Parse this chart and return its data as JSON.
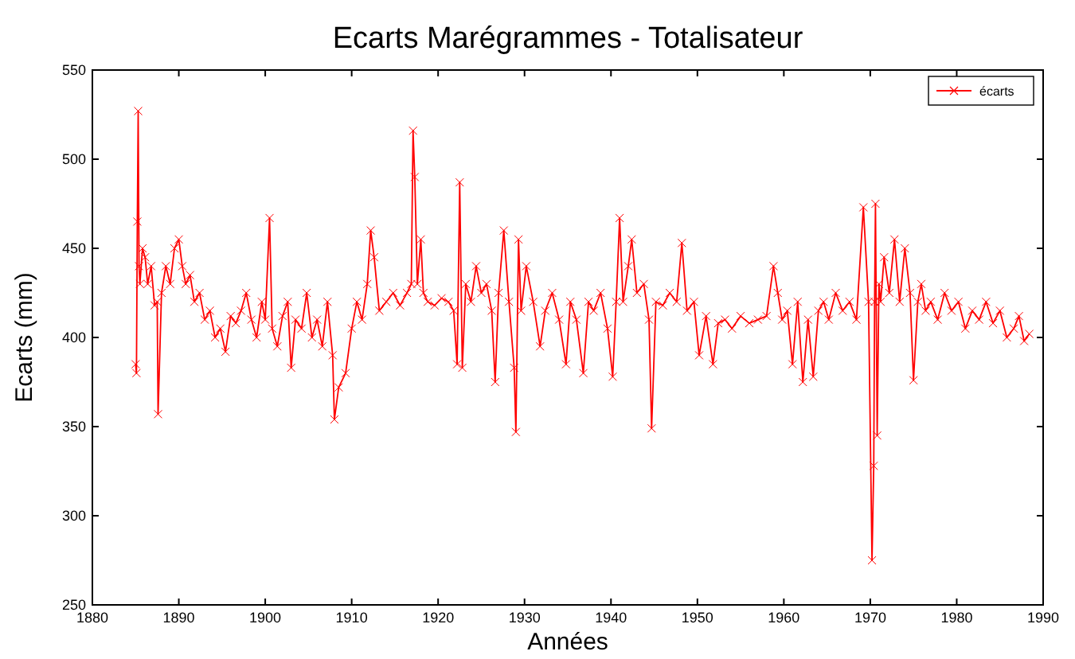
{
  "chart_data": {
    "type": "line",
    "title": "Ecarts Marégrammes - Totalisateur",
    "xlabel": "Années",
    "ylabel": "Ecarts (mm)",
    "xlim": [
      1880,
      1990
    ],
    "xticks": [
      1880,
      1890,
      1900,
      1910,
      1920,
      1930,
      1940,
      1950,
      1960,
      1970,
      1980,
      1990
    ],
    "ylim": [
      250,
      550
    ],
    "yticks": [
      250,
      300,
      350,
      400,
      450,
      500,
      550
    ],
    "grid": false,
    "legend": "top right",
    "marker": "cross",
    "line_style": "solid",
    "series": [
      {
        "name": "écarts",
        "color": "#ff0000",
        "x": [
          1885.0,
          1885.1,
          1885.2,
          1885.3,
          1885.4,
          1885.5,
          1885.8,
          1886.1,
          1886.4,
          1886.8,
          1887.2,
          1887.5,
          1887.6,
          1888.0,
          1888.5,
          1889.0,
          1889.5,
          1890.0,
          1890.4,
          1890.8,
          1891.3,
          1891.8,
          1892.4,
          1893.0,
          1893.6,
          1894.2,
          1894.8,
          1895.4,
          1896.0,
          1896.6,
          1897.2,
          1897.8,
          1898.4,
          1899.0,
          1899.6,
          1900.0,
          1900.5,
          1900.8,
          1901.4,
          1902.0,
          1902.6,
          1903.0,
          1903.5,
          1904.2,
          1904.8,
          1905.4,
          1906.0,
          1906.6,
          1907.2,
          1907.8,
          1908.0,
          1908.5,
          1909.3,
          1910.0,
          1910.6,
          1911.2,
          1911.8,
          1912.2,
          1912.6,
          1913.2,
          1914.0,
          1914.8,
          1915.6,
          1916.4,
          1916.9,
          1917.1,
          1917.3,
          1917.6,
          1918.0,
          1918.3,
          1918.8,
          1919.6,
          1920.4,
          1921.2,
          1921.8,
          1922.2,
          1922.5,
          1922.8,
          1923.2,
          1923.8,
          1924.4,
          1925.0,
          1925.6,
          1926.2,
          1926.6,
          1927.0,
          1927.6,
          1928.2,
          1928.8,
          1929.0,
          1929.3,
          1929.6,
          1930.2,
          1931.0,
          1931.8,
          1932.4,
          1933.2,
          1934.0,
          1934.8,
          1935.3,
          1936.0,
          1936.8,
          1937.4,
          1938.0,
          1938.8,
          1939.6,
          1940.2,
          1940.6,
          1941.0,
          1941.4,
          1942.0,
          1942.4,
          1943.0,
          1943.8,
          1944.4,
          1944.7,
          1945.2,
          1946.0,
          1946.8,
          1947.6,
          1948.2,
          1948.8,
          1949.6,
          1950.2,
          1951.0,
          1951.8,
          1952.4,
          1953.2,
          1954.0,
          1955.0,
          1956.0,
          1957.0,
          1958.0,
          1958.8,
          1959.3,
          1959.8,
          1960.4,
          1961.0,
          1961.6,
          1962.2,
          1962.8,
          1963.4,
          1964.0,
          1964.6,
          1965.2,
          1966.0,
          1966.8,
          1967.6,
          1968.4,
          1969.2,
          1969.8,
          1970.2,
          1970.4,
          1970.5,
          1970.6,
          1970.8,
          1971.0,
          1971.2,
          1971.6,
          1972.2,
          1972.8,
          1973.4,
          1974.0,
          1974.6,
          1975.0,
          1975.5,
          1975.9,
          1976.4,
          1977.0,
          1977.8,
          1978.6,
          1979.4,
          1980.2,
          1981.0,
          1981.8,
          1982.6,
          1983.4,
          1984.2,
          1985.0,
          1985.8,
          1986.6,
          1987.2,
          1987.8,
          1988.4
        ],
        "values": [
          385,
          380,
          465,
          527,
          440,
          430,
          450,
          445,
          430,
          440,
          418,
          420,
          357,
          425,
          440,
          430,
          450,
          455,
          440,
          430,
          435,
          420,
          425,
          410,
          415,
          400,
          405,
          392,
          412,
          408,
          415,
          425,
          410,
          400,
          420,
          410,
          467,
          405,
          395,
          412,
          420,
          383,
          410,
          405,
          425,
          400,
          410,
          395,
          420,
          390,
          354,
          372,
          380,
          405,
          420,
          410,
          430,
          460,
          445,
          415,
          420,
          425,
          418,
          425,
          430,
          516,
          490,
          430,
          455,
          425,
          420,
          418,
          422,
          420,
          415,
          385,
          487,
          383,
          430,
          420,
          440,
          425,
          430,
          415,
          375,
          425,
          460,
          420,
          383,
          347,
          455,
          415,
          440,
          420,
          395,
          415,
          425,
          410,
          385,
          420,
          410,
          380,
          420,
          415,
          425,
          405,
          378,
          420,
          467,
          420,
          440,
          455,
          425,
          430,
          410,
          349,
          420,
          418,
          425,
          420,
          453,
          415,
          420,
          390,
          412,
          385,
          408,
          410,
          405,
          412,
          408,
          410,
          412,
          440,
          425,
          410,
          415,
          385,
          420,
          375,
          410,
          378,
          415,
          420,
          410,
          425,
          415,
          420,
          410,
          473,
          420,
          275,
          328,
          420,
          475,
          345,
          430,
          420,
          445,
          425,
          455,
          420,
          450,
          425,
          376,
          420,
          430,
          415,
          420,
          410,
          425,
          415,
          420,
          405,
          415,
          410,
          420,
          408,
          415,
          400,
          405,
          412,
          398,
          402
        ]
      }
    ]
  }
}
